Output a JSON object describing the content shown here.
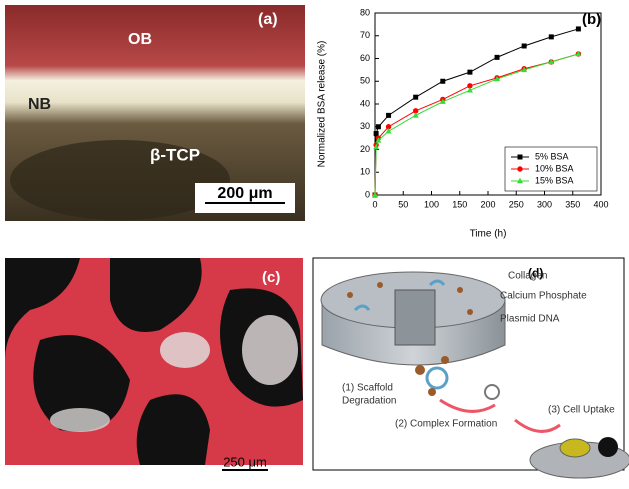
{
  "panels": {
    "a": {
      "label": "(a)",
      "ob": "OB",
      "nb": "NB",
      "tcp": "β-TCP",
      "scale": "200 μm"
    },
    "c": {
      "label": "(c)",
      "scale": "250 μm"
    },
    "d": {
      "label": "(d)",
      "collagen": "Collagen",
      "calcium": "Calcium Phosphate",
      "plasmid": "Plasmid DNA",
      "step1a": "(1) Scaffold",
      "step1b": "Degradation",
      "step2": "(2) Complex Formation",
      "step3": "(3) Cell Uptake"
    }
  },
  "chart_data": {
    "type": "line",
    "label": "(b)",
    "x_label": "Time (h)",
    "y_label": "Normalized BSA release (%)",
    "x": [
      0,
      2,
      6,
      24,
      72,
      120,
      168,
      216,
      264,
      312,
      360
    ],
    "series": [
      {
        "name": "5% BSA",
        "color": "#000000",
        "marker": "square",
        "values": [
          0,
          27,
          30,
          35,
          43,
          50,
          54,
          60.5,
          65.5,
          69.5,
          73
        ]
      },
      {
        "name": "10% BSA",
        "color": "#ff0000",
        "marker": "circle",
        "values": [
          0,
          22,
          25,
          30,
          37,
          42,
          48,
          51.5,
          55.5,
          58.5,
          62
        ]
      },
      {
        "name": "15% BSA",
        "color": "#33dd33",
        "marker": "triangle",
        "values": [
          0,
          21,
          24,
          28,
          35,
          41,
          46,
          51,
          55,
          58.5,
          62
        ]
      }
    ],
    "xlim": [
      0,
      400
    ],
    "xticks": [
      0,
      50,
      100,
      150,
      200,
      250,
      300,
      350,
      400
    ],
    "ylim": [
      0,
      80
    ],
    "yticks": [
      0,
      10,
      20,
      30,
      40,
      50,
      60,
      70,
      80
    ],
    "legend": "lower right"
  }
}
